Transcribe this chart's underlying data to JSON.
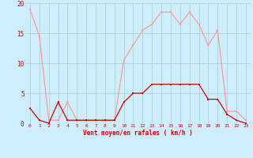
{
  "x": [
    0,
    1,
    2,
    3,
    4,
    5,
    6,
    7,
    8,
    9,
    10,
    11,
    12,
    13,
    14,
    15,
    16,
    17,
    18,
    19,
    20,
    21,
    22,
    23
  ],
  "vent_moyen": [
    2.5,
    0.5,
    0.0,
    3.5,
    0.5,
    0.5,
    0.5,
    0.5,
    0.5,
    0.5,
    3.5,
    5.0,
    5.0,
    6.5,
    6.5,
    6.5,
    6.5,
    6.5,
    6.5,
    4.0,
    4.0,
    1.5,
    0.5,
    0.0
  ],
  "en_rafales": [
    19.0,
    14.5,
    0.5,
    0.5,
    3.5,
    0.5,
    0.5,
    0.5,
    0.5,
    0.5,
    10.5,
    13.0,
    15.5,
    16.5,
    18.5,
    18.5,
    16.5,
    18.5,
    16.5,
    13.0,
    15.5,
    2.0,
    2.0,
    0.5
  ],
  "color_moyen": "#cc0000",
  "color_rafales": "#ff9999",
  "bg_color": "#cceeff",
  "grid_color": "#aacccc",
  "xlabel": "Vent moyen/en rafales ( km/h )",
  "xlabel_color": "#cc0000",
  "tick_color": "#cc0000",
  "ylim": [
    0,
    20
  ],
  "xlim": [
    -0.5,
    23.5
  ],
  "yticks": [
    0,
    5,
    10,
    15,
    20
  ]
}
